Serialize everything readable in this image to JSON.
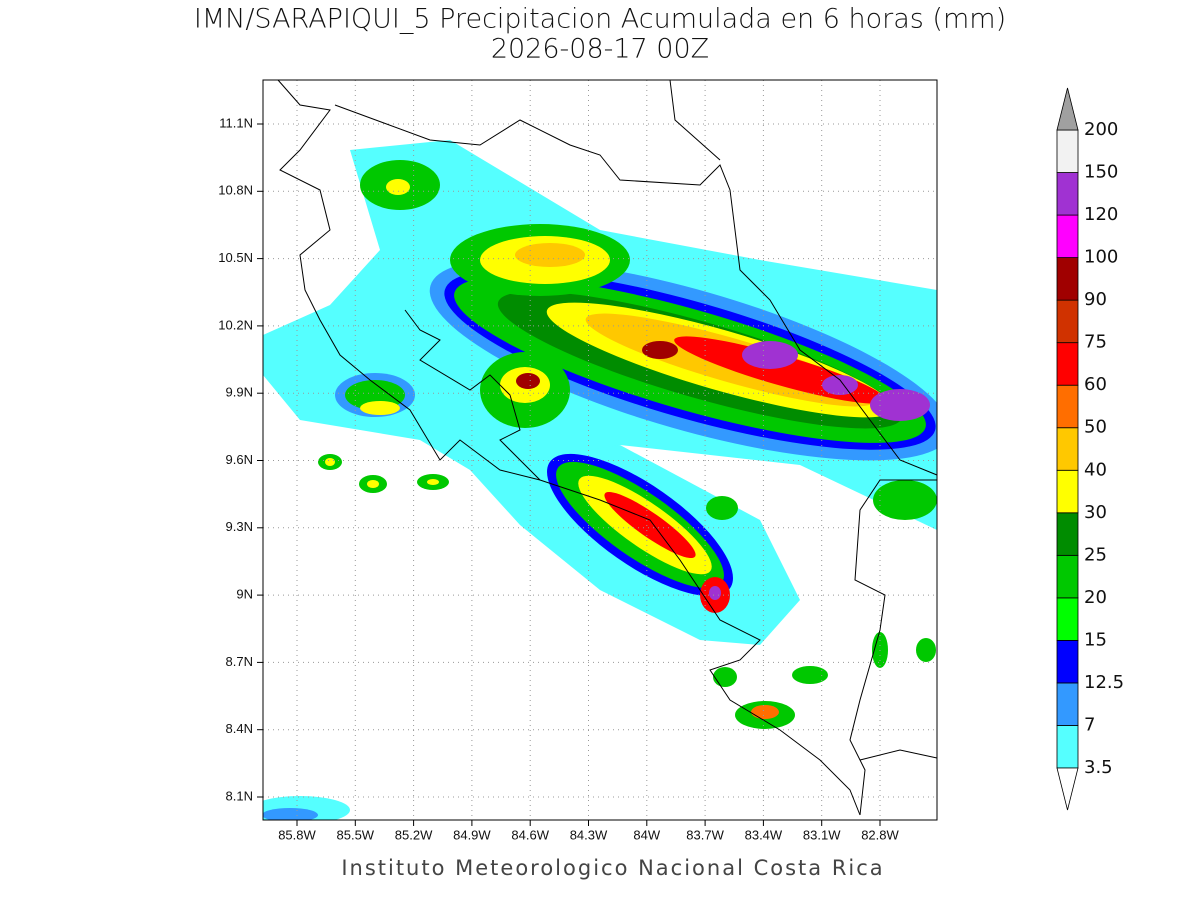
{
  "header": {
    "title": "IMN/SARAPIQUI_5 Precipitacion Acumulada en 6 horas (mm)",
    "subtitle": "2026-08-17 00Z"
  },
  "map": {
    "lat_labels": [
      "11.1N",
      "10.8N",
      "10.5N",
      "10.2N",
      "9.9N",
      "9.6N",
      "9.3N",
      "9N",
      "8.7N",
      "8.4N",
      "8.1N"
    ],
    "lon_labels": [
      "85.8W",
      "85.5W",
      "85.2W",
      "84.9W",
      "84.6W",
      "84.3W",
      "84W",
      "83.7W",
      "83.4W",
      "83.1W",
      "82.8W"
    ]
  },
  "colorbar": {
    "levels": [
      3.5,
      7,
      12.5,
      15,
      20,
      25,
      30,
      40,
      50,
      60,
      75,
      90,
      100,
      120,
      150,
      200
    ],
    "colors": [
      "#55ffff",
      "#3399ff",
      "#0000ff",
      "#00ff00",
      "#00c800",
      "#008c00",
      "#ffff00",
      "#ffc800",
      "#ff6e00",
      "#ff0000",
      "#d03200",
      "#a00000",
      "#ff00ff",
      "#a032d2",
      "#f2f2f2"
    ],
    "over_color": "#a0a0a0",
    "under_color": "#ffffff"
  },
  "footer": "Instituto Meteorologico Nacional Costa Rica"
}
